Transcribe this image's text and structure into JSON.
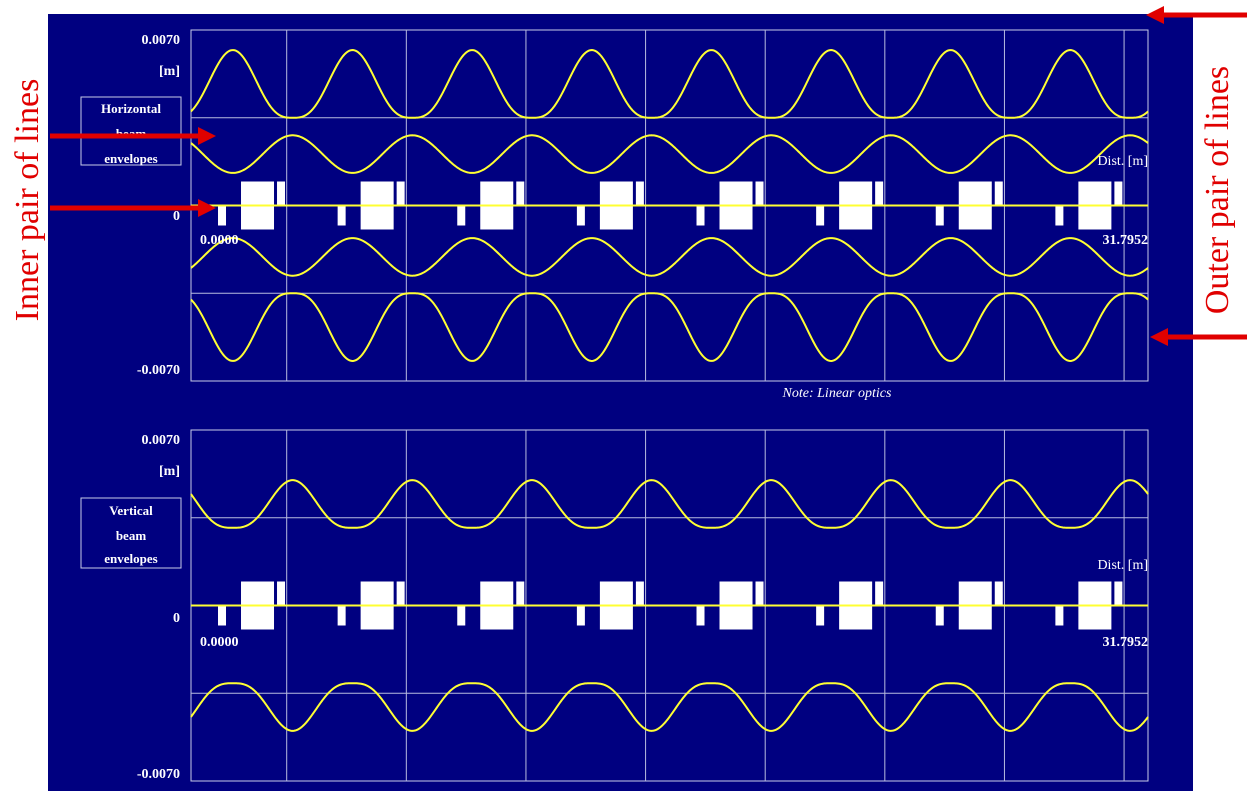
{
  "colors": {
    "background": "#000080",
    "grid": "#b8bce0",
    "frame": "#c8cce8",
    "curve": "#ffff33",
    "text": "#ffffff",
    "element": "#ffffff",
    "annotation": "#e00000",
    "outer_bg": "#ffffff"
  },
  "annotations": {
    "left": "Inner pair of lines",
    "right": "Outer pair of lines"
  },
  "note": "Note: Linear optics",
  "chart_data": [
    {
      "type": "line",
      "title": "",
      "panel_label": "Horizontal beam envelopes",
      "panel_label_lines": [
        "Horizontal",
        "beam",
        "envelopes"
      ],
      "ylabel": "[m]",
      "xlabel": "Dist. [m]",
      "ylim": [
        -0.007,
        0.007
      ],
      "ytick_labels": [
        "0.0070",
        "0",
        "-0.0070"
      ],
      "xlim": [
        0.0,
        31.7952
      ],
      "xtick_labels": [
        "0.0000",
        "31.7952"
      ],
      "grid": true,
      "n_cells": 8,
      "series": [
        {
          "role": "outer",
          "min": 0.0035,
          "max": 0.0062,
          "peak_phase": 0.35,
          "curve_exp": 1.5
        },
        {
          "role": "inner",
          "min": 0.0013,
          "max": 0.0028,
          "peak_phase": 0.85,
          "curve_exp": 1.0
        }
      ]
    },
    {
      "type": "line",
      "title": "",
      "panel_label": "Vertical beam envelopes",
      "panel_label_lines": [
        "Vertical",
        "beam",
        "envelopes"
      ],
      "ylabel": "[m]",
      "xlabel": "Dist. [m]",
      "ylim": [
        -0.007,
        0.007
      ],
      "ytick_labels": [
        "0.0070",
        "0",
        "-0.0070"
      ],
      "xlim": [
        0.0,
        31.7952
      ],
      "xtick_labels": [
        "0.0000",
        "31.7952"
      ],
      "grid": true,
      "n_cells": 8,
      "series": [
        {
          "role": "outer",
          "min": 0.0031,
          "max": 0.005,
          "peak_phase": 0.85,
          "curve_exp": 1.5
        }
      ]
    }
  ]
}
